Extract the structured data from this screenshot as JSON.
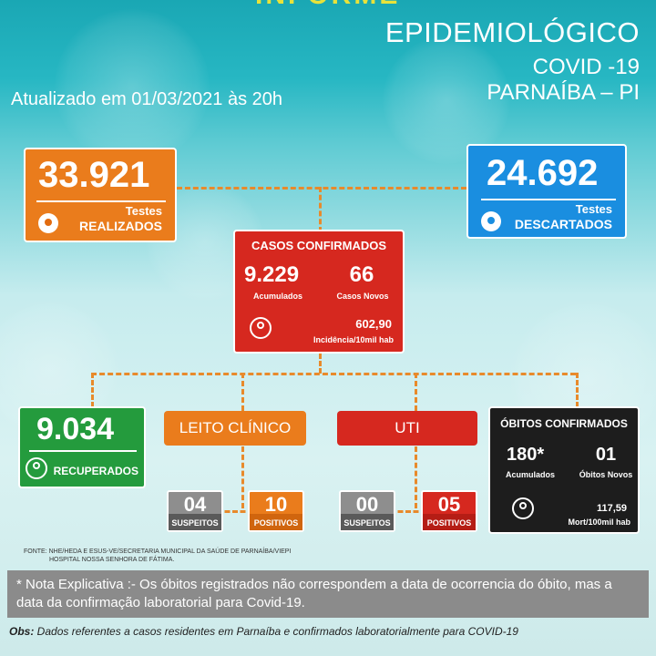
{
  "header": {
    "top_cut": "INFORME",
    "line1": "EPIDEMIOLÓGICO",
    "line2": "COVID -19",
    "line3": "PARNAÍBA – PI",
    "updated": "Atualizado em 01/03/2021 às 20h"
  },
  "tests": {
    "value": "33.921",
    "label_top": "Testes",
    "label_bottom": "REALIZADOS"
  },
  "discarded": {
    "value": "24.692",
    "label_top": "Testes",
    "label_bottom": "DESCARTADOS"
  },
  "confirmed": {
    "title": "CASOS CONFIRMADOS",
    "accumulated_value": "9.229",
    "accumulated_label": "Acumulados",
    "new_value": "66",
    "new_label": "Casos Novos",
    "incidence_value": "602,90",
    "incidence_label": "Incidência/10mil hab"
  },
  "recovered": {
    "value": "9.034",
    "label": "RECUPERADOS"
  },
  "leito": {
    "title": "LEITO CLÍNICO",
    "suspects_value": "04",
    "suspects_label": "SUSPEITOS",
    "positives_value": "10",
    "positives_label": "POSITIVOS"
  },
  "uti": {
    "title": "UTI",
    "suspects_value": "00",
    "suspects_label": "SUSPEITOS",
    "positives_value": "05",
    "positives_label": "POSITIVOS"
  },
  "deaths": {
    "title": "ÓBITOS CONFIRMADOS",
    "accumulated_value": "180*",
    "accumulated_label": "Acumulados",
    "new_value": "01",
    "new_label": "Óbitos Novos",
    "mortality_value": "117,59",
    "mortality_label": "Mort/100mil hab"
  },
  "source": {
    "line1": "FONTE: NHE/HEDA E ESUS-VE/SECRETARIA MUNICIPAL DA SAÚDE DE PARNAÍBA/VIEPI",
    "line2": "HOSPITAL NOSSA SENHORA DE FÁTIMA."
  },
  "note": "* Nota Explicativa :- Os óbitos registrados não correspondem a data de ocorrencia do óbito, mas a data da confirmação laboratorial para Covid-19.",
  "obs": {
    "label": "Obs:",
    "text": " Dados referentes a casos residentes em Parnaíba e confirmados laboratorialmente para COVID-19"
  },
  "colors": {
    "orange": "#ea7c1c",
    "blue": "#1a8ee0",
    "red": "#d6281f",
    "green": "#249b3d",
    "black": "#1d1d1d",
    "grey": "#6e6e6e"
  }
}
